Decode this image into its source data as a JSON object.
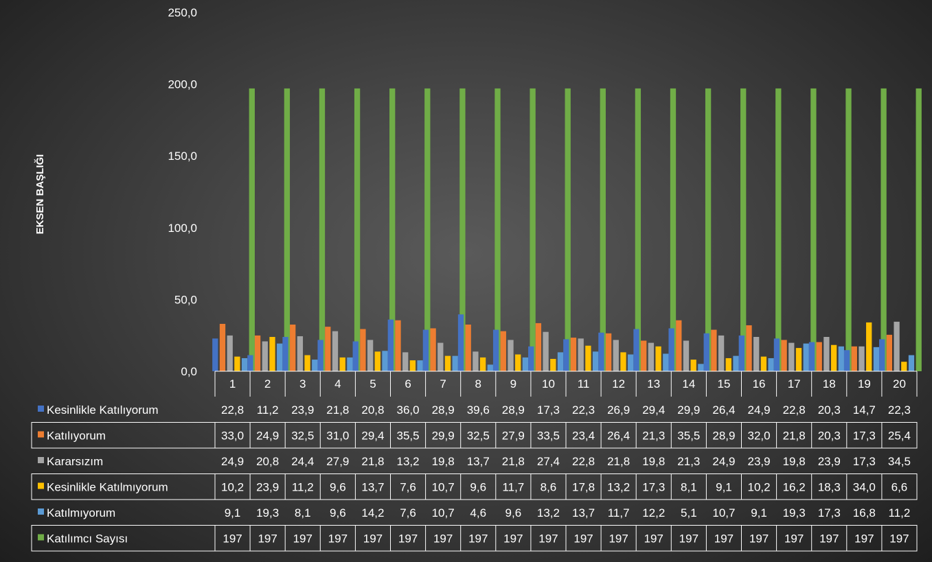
{
  "chart_data": {
    "type": "bar",
    "title": "",
    "xlabel": "",
    "ylabel": "EKSEN BAŞLIĞI",
    "ylim": [
      0,
      250
    ],
    "yticks": [
      "0,0",
      "50,0",
      "100,0",
      "150,0",
      "200,0",
      "250,0"
    ],
    "categories": [
      "1",
      "2",
      "3",
      "4",
      "5",
      "6",
      "7",
      "8",
      "9",
      "10",
      "11",
      "12",
      "13",
      "14",
      "15",
      "16",
      "17",
      "18",
      "19",
      "20"
    ],
    "grid": false,
    "legend": "data-table",
    "series": [
      {
        "name": "Kesinlikle Katılıyorum",
        "color": "#4472c4",
        "values": [
          22.8,
          11.2,
          23.9,
          21.8,
          20.8,
          36.0,
          28.9,
          39.6,
          28.9,
          17.3,
          22.3,
          26.9,
          29.4,
          29.9,
          26.4,
          24.9,
          22.8,
          20.3,
          14.7,
          22.3
        ],
        "labels": [
          "22,8",
          "11,2",
          "23,9",
          "21,8",
          "20,8",
          "36,0",
          "28,9",
          "39,6",
          "28,9",
          "17,3",
          "22,3",
          "26,9",
          "29,4",
          "29,9",
          "26,4",
          "24,9",
          "22,8",
          "20,3",
          "14,7",
          "22,3"
        ]
      },
      {
        "name": "Katılıyorum",
        "color": "#ed7d31",
        "values": [
          33.0,
          24.9,
          32.5,
          31.0,
          29.4,
          35.5,
          29.9,
          32.5,
          27.9,
          33.5,
          23.4,
          26.4,
          21.3,
          35.5,
          28.9,
          32.0,
          21.8,
          20.3,
          17.3,
          25.4
        ],
        "labels": [
          "33,0",
          "24,9",
          "32,5",
          "31,0",
          "29,4",
          "35,5",
          "29,9",
          "32,5",
          "27,9",
          "33,5",
          "23,4",
          "26,4",
          "21,3",
          "35,5",
          "28,9",
          "32,0",
          "21,8",
          "20,3",
          "17,3",
          "25,4"
        ]
      },
      {
        "name": "Kararsızım",
        "color": "#a5a5a5",
        "values": [
          24.9,
          20.8,
          24.4,
          27.9,
          21.8,
          13.2,
          19.8,
          13.7,
          21.8,
          27.4,
          22.8,
          21.8,
          19.8,
          21.3,
          24.9,
          23.9,
          19.8,
          23.9,
          17.3,
          34.5
        ],
        "labels": [
          "24,9",
          "20,8",
          "24,4",
          "27,9",
          "21,8",
          "13,2",
          "19,8",
          "13,7",
          "21,8",
          "27,4",
          "22,8",
          "21,8",
          "19,8",
          "21,3",
          "24,9",
          "23,9",
          "19,8",
          "23,9",
          "17,3",
          "34,5"
        ]
      },
      {
        "name": "Kesinlikle Katılmıyorum",
        "color": "#ffc000",
        "values": [
          10.2,
          23.9,
          11.2,
          9.6,
          13.7,
          7.6,
          10.7,
          9.6,
          11.7,
          8.6,
          17.8,
          13.2,
          17.3,
          8.1,
          9.1,
          10.2,
          16.2,
          18.3,
          34.0,
          6.6
        ],
        "labels": [
          "10,2",
          "23,9",
          "11,2",
          "9,6",
          "13,7",
          "7,6",
          "10,7",
          "9,6",
          "11,7",
          "8,6",
          "17,8",
          "13,2",
          "17,3",
          "8,1",
          "9,1",
          "10,2",
          "16,2",
          "18,3",
          "34,0",
          "6,6"
        ]
      },
      {
        "name": "Katılmıyorum",
        "color": "#5b9bd5",
        "values": [
          9.1,
          19.3,
          8.1,
          9.6,
          14.2,
          7.6,
          10.7,
          4.6,
          9.6,
          13.2,
          13.7,
          11.7,
          12.2,
          5.1,
          10.7,
          9.1,
          19.3,
          17.3,
          16.8,
          11.2
        ],
        "labels": [
          "9,1",
          "19,3",
          "8,1",
          "9,6",
          "14,2",
          "7,6",
          "10,7",
          "4,6",
          "9,6",
          "13,2",
          "13,7",
          "11,7",
          "12,2",
          "5,1",
          "10,7",
          "9,1",
          "19,3",
          "17,3",
          "16,8",
          "11,2"
        ]
      },
      {
        "name": "Katılımcı Sayısı",
        "color": "#70ad47",
        "values": [
          197,
          197,
          197,
          197,
          197,
          197,
          197,
          197,
          197,
          197,
          197,
          197,
          197,
          197,
          197,
          197,
          197,
          197,
          197,
          197
        ],
        "labels": [
          "197",
          "197",
          "197",
          "197",
          "197",
          "197",
          "197",
          "197",
          "197",
          "197",
          "197",
          "197",
          "197",
          "197",
          "197",
          "197",
          "197",
          "197",
          "197",
          "197"
        ]
      }
    ]
  }
}
